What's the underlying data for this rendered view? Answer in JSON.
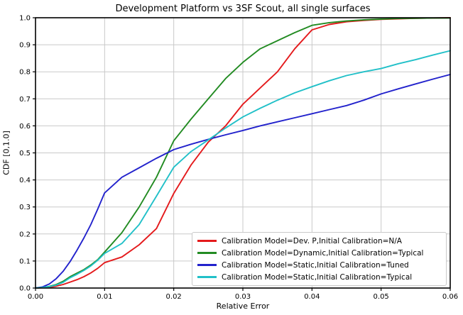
{
  "title": "Development Platform vs 3SF Scout, all single surfaces",
  "chart_data": {
    "type": "line",
    "title": "Development Platform vs 3SF Scout, all single surfaces",
    "xlabel": "Relative Error",
    "ylabel": "CDF [0,1.0]",
    "xlim": [
      0.0,
      0.06
    ],
    "ylim": [
      0.0,
      1.0
    ],
    "xticks": [
      "0.00",
      "0.01",
      "0.02",
      "0.03",
      "0.04",
      "0.05",
      "0.06"
    ],
    "yticks": [
      "0.0",
      "0.1",
      "0.2",
      "0.3",
      "0.4",
      "0.5",
      "0.6",
      "0.7",
      "0.8",
      "0.9",
      "1.0"
    ],
    "grid": true,
    "grid_color": "#c9c9c9",
    "spine_color": "#000000",
    "legend_position": "lower-right-inside",
    "series": [
      {
        "name": "Calibration Model=Dev. P,Initial Calibration=N/A",
        "color": "#e41a1c",
        "x": [
          0,
          0.001,
          0.002,
          0.003,
          0.004,
          0.005,
          0.006,
          0.007,
          0.008,
          0.009,
          0.01,
          0.0125,
          0.015,
          0.0175,
          0.02,
          0.0225,
          0.025,
          0.0275,
          0.03,
          0.0325,
          0.035,
          0.0375,
          0.04,
          0.0425,
          0.045,
          0.0475,
          0.05,
          0.0525,
          0.055,
          0.0575,
          0.06
        ],
        "y": [
          0,
          0.001,
          0.003,
          0.007,
          0.013,
          0.022,
          0.031,
          0.042,
          0.056,
          0.073,
          0.094,
          0.115,
          0.16,
          0.22,
          0.35,
          0.455,
          0.54,
          0.6,
          0.68,
          0.74,
          0.8,
          0.885,
          0.955,
          0.975,
          0.985,
          0.99,
          0.994,
          0.996,
          0.998,
          0.999,
          1.0
        ]
      },
      {
        "name": "Calibration Model=Dynamic,Initial Calibration=Typical",
        "color": "#228b22",
        "x": [
          0,
          0.001,
          0.002,
          0.003,
          0.004,
          0.005,
          0.006,
          0.007,
          0.008,
          0.009,
          0.01,
          0.0125,
          0.015,
          0.0175,
          0.02,
          0.0225,
          0.025,
          0.0275,
          0.03,
          0.0325,
          0.035,
          0.0375,
          0.04,
          0.0425,
          0.045,
          0.0475,
          0.05,
          0.0525,
          0.055,
          0.0575,
          0.06
        ],
        "y": [
          0,
          0.002,
          0.006,
          0.013,
          0.025,
          0.042,
          0.055,
          0.068,
          0.085,
          0.105,
          0.133,
          0.205,
          0.3,
          0.41,
          0.545,
          0.625,
          0.7,
          0.775,
          0.835,
          0.885,
          0.915,
          0.945,
          0.972,
          0.982,
          0.988,
          0.992,
          0.995,
          0.997,
          0.998,
          0.999,
          0.999
        ]
      },
      {
        "name": "Calibration Model=Static,Initial Calibration=Tuned",
        "color": "#2222cc",
        "x": [
          0,
          0.001,
          0.002,
          0.003,
          0.004,
          0.005,
          0.006,
          0.007,
          0.008,
          0.009,
          0.01,
          0.0125,
          0.015,
          0.0175,
          0.02,
          0.0225,
          0.025,
          0.0275,
          0.03,
          0.0325,
          0.035,
          0.0375,
          0.04,
          0.0425,
          0.045,
          0.0475,
          0.05,
          0.0525,
          0.055,
          0.0575,
          0.06
        ],
        "y": [
          0,
          0.004,
          0.015,
          0.035,
          0.062,
          0.098,
          0.14,
          0.185,
          0.235,
          0.292,
          0.352,
          0.41,
          0.445,
          0.48,
          0.512,
          0.532,
          0.55,
          0.567,
          0.583,
          0.6,
          0.615,
          0.63,
          0.645,
          0.66,
          0.675,
          0.695,
          0.718,
          0.737,
          0.755,
          0.773,
          0.79
        ]
      },
      {
        "name": "Calibration Model=Static,Initial Calibration=Typical",
        "color": "#21c0c8",
        "x": [
          0,
          0.001,
          0.002,
          0.003,
          0.004,
          0.005,
          0.006,
          0.007,
          0.008,
          0.009,
          0.01,
          0.0125,
          0.015,
          0.0175,
          0.02,
          0.0225,
          0.025,
          0.0275,
          0.03,
          0.0325,
          0.035,
          0.0375,
          0.04,
          0.0425,
          0.045,
          0.0475,
          0.05,
          0.0525,
          0.055,
          0.0575,
          0.06
        ],
        "y": [
          0,
          0.002,
          0.005,
          0.011,
          0.021,
          0.038,
          0.051,
          0.065,
          0.082,
          0.103,
          0.128,
          0.165,
          0.235,
          0.34,
          0.447,
          0.505,
          0.548,
          0.592,
          0.633,
          0.665,
          0.695,
          0.722,
          0.745,
          0.767,
          0.786,
          0.8,
          0.812,
          0.83,
          0.845,
          0.862,
          0.878
        ]
      }
    ]
  }
}
